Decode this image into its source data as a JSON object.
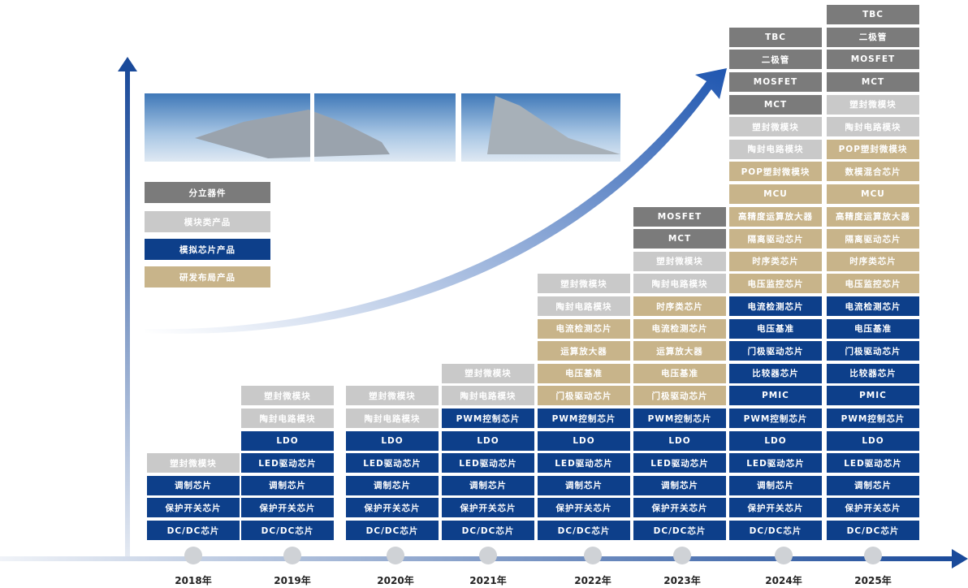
{
  "legend": [
    {
      "label": "分立器件",
      "color": "#7b7b7b"
    },
    {
      "label": "模块类产品",
      "color": "#c9c9c9"
    },
    {
      "label": "模拟芯片产品",
      "color": "#0d3f8a"
    },
    {
      "label": "研发布局产品",
      "color": "#c8b48a"
    }
  ],
  "years": [
    {
      "label": "2018年",
      "items": [
        {
          "label": "DC/DC芯片",
          "color": "#0d3f8a"
        },
        {
          "label": "保护开关芯片",
          "color": "#0d3f8a"
        },
        {
          "label": "调制芯片",
          "color": "#0d3f8a"
        },
        {
          "label": "塑封微模块",
          "color": "#c9c9c9"
        }
      ]
    },
    {
      "label": "2019年",
      "items": [
        {
          "label": "DC/DC芯片",
          "color": "#0d3f8a"
        },
        {
          "label": "保护开关芯片",
          "color": "#0d3f8a"
        },
        {
          "label": "调制芯片",
          "color": "#0d3f8a"
        },
        {
          "label": "LED驱动芯片",
          "color": "#0d3f8a"
        },
        {
          "label": "LDO",
          "color": "#0d3f8a"
        },
        {
          "label": "陶封电路模块",
          "color": "#c9c9c9"
        },
        {
          "label": "塑封微模块",
          "color": "#c9c9c9"
        }
      ]
    },
    {
      "label": "2020年",
      "items": [
        {
          "label": "DC/DC芯片",
          "color": "#0d3f8a"
        },
        {
          "label": "保护开关芯片",
          "color": "#0d3f8a"
        },
        {
          "label": "调制芯片",
          "color": "#0d3f8a"
        },
        {
          "label": "LED驱动芯片",
          "color": "#0d3f8a"
        },
        {
          "label": "LDO",
          "color": "#0d3f8a"
        },
        {
          "label": "陶封电路模块",
          "color": "#c9c9c9"
        },
        {
          "label": "塑封微模块",
          "color": "#c9c9c9"
        }
      ]
    },
    {
      "label": "2021年",
      "items": [
        {
          "label": "DC/DC芯片",
          "color": "#0d3f8a"
        },
        {
          "label": "保护开关芯片",
          "color": "#0d3f8a"
        },
        {
          "label": "调制芯片",
          "color": "#0d3f8a"
        },
        {
          "label": "LED驱动芯片",
          "color": "#0d3f8a"
        },
        {
          "label": "LDO",
          "color": "#0d3f8a"
        },
        {
          "label": "PWM控制芯片",
          "color": "#0d3f8a"
        },
        {
          "label": "陶封电路模块",
          "color": "#c9c9c9"
        },
        {
          "label": "塑封微模块",
          "color": "#c9c9c9"
        }
      ]
    },
    {
      "label": "2022年",
      "items": [
        {
          "label": "DC/DC芯片",
          "color": "#0d3f8a"
        },
        {
          "label": "保护开关芯片",
          "color": "#0d3f8a"
        },
        {
          "label": "调制芯片",
          "color": "#0d3f8a"
        },
        {
          "label": "LED驱动芯片",
          "color": "#0d3f8a"
        },
        {
          "label": "LDO",
          "color": "#0d3f8a"
        },
        {
          "label": "PWM控制芯片",
          "color": "#0d3f8a"
        },
        {
          "label": "门极驱动芯片",
          "color": "#c8b48a"
        },
        {
          "label": "电压基准",
          "color": "#c8b48a"
        },
        {
          "label": "运算放大器",
          "color": "#c8b48a"
        },
        {
          "label": "电流检测芯片",
          "color": "#c8b48a"
        },
        {
          "label": "陶封电路模块",
          "color": "#c9c9c9"
        },
        {
          "label": "塑封微模块",
          "color": "#c9c9c9"
        }
      ]
    },
    {
      "label": "2023年",
      "items": [
        {
          "label": "DC/DC芯片",
          "color": "#0d3f8a"
        },
        {
          "label": "保护开关芯片",
          "color": "#0d3f8a"
        },
        {
          "label": "调制芯片",
          "color": "#0d3f8a"
        },
        {
          "label": "LED驱动芯片",
          "color": "#0d3f8a"
        },
        {
          "label": "LDO",
          "color": "#0d3f8a"
        },
        {
          "label": "PWM控制芯片",
          "color": "#0d3f8a"
        },
        {
          "label": "门极驱动芯片",
          "color": "#c8b48a"
        },
        {
          "label": "电压基准",
          "color": "#c8b48a"
        },
        {
          "label": "运算放大器",
          "color": "#c8b48a"
        },
        {
          "label": "电流检测芯片",
          "color": "#c8b48a"
        },
        {
          "label": "时序类芯片",
          "color": "#c8b48a"
        },
        {
          "label": "陶封电路模块",
          "color": "#c9c9c9"
        },
        {
          "label": "塑封微模块",
          "color": "#c9c9c9"
        },
        {
          "label": "MCT",
          "color": "#7b7b7b"
        },
        {
          "label": "MOSFET",
          "color": "#7b7b7b"
        }
      ]
    },
    {
      "label": "2024年",
      "items": [
        {
          "label": "DC/DC芯片",
          "color": "#0d3f8a"
        },
        {
          "label": "保护开关芯片",
          "color": "#0d3f8a"
        },
        {
          "label": "调制芯片",
          "color": "#0d3f8a"
        },
        {
          "label": "LED驱动芯片",
          "color": "#0d3f8a"
        },
        {
          "label": "LDO",
          "color": "#0d3f8a"
        },
        {
          "label": "PWM控制芯片",
          "color": "#0d3f8a"
        },
        {
          "label": "PMIC",
          "color": "#0d3f8a"
        },
        {
          "label": "比较器芯片",
          "color": "#0d3f8a"
        },
        {
          "label": "门极驱动芯片",
          "color": "#0d3f8a"
        },
        {
          "label": "电压基准",
          "color": "#0d3f8a"
        },
        {
          "label": "电流检测芯片",
          "color": "#0d3f8a"
        },
        {
          "label": "电压监控芯片",
          "color": "#c8b48a"
        },
        {
          "label": "时序类芯片",
          "color": "#c8b48a"
        },
        {
          "label": "隔离驱动芯片",
          "color": "#c8b48a"
        },
        {
          "label": "高精度运算放大器",
          "color": "#c8b48a"
        },
        {
          "label": "MCU",
          "color": "#c8b48a"
        },
        {
          "label": "POP塑封微模块",
          "color": "#c8b48a"
        },
        {
          "label": "陶封电路模块",
          "color": "#c9c9c9"
        },
        {
          "label": "塑封微模块",
          "color": "#c9c9c9"
        },
        {
          "label": "MCT",
          "color": "#7b7b7b"
        },
        {
          "label": "MOSFET",
          "color": "#7b7b7b"
        },
        {
          "label": "二极管",
          "color": "#7b7b7b"
        },
        {
          "label": "TBC",
          "color": "#7b7b7b"
        }
      ]
    },
    {
      "label": "2025年",
      "items": [
        {
          "label": "DC/DC芯片",
          "color": "#0d3f8a"
        },
        {
          "label": "保护开关芯片",
          "color": "#0d3f8a"
        },
        {
          "label": "调制芯片",
          "color": "#0d3f8a"
        },
        {
          "label": "LED驱动芯片",
          "color": "#0d3f8a"
        },
        {
          "label": "LDO",
          "color": "#0d3f8a"
        },
        {
          "label": "PWM控制芯片",
          "color": "#0d3f8a"
        },
        {
          "label": "PMIC",
          "color": "#0d3f8a"
        },
        {
          "label": "比较器芯片",
          "color": "#0d3f8a"
        },
        {
          "label": "门极驱动芯片",
          "color": "#0d3f8a"
        },
        {
          "label": "电压基准",
          "color": "#0d3f8a"
        },
        {
          "label": "电流检测芯片",
          "color": "#0d3f8a"
        },
        {
          "label": "电压监控芯片",
          "color": "#c8b48a"
        },
        {
          "label": "时序类芯片",
          "color": "#c8b48a"
        },
        {
          "label": "隔离驱动芯片",
          "color": "#c8b48a"
        },
        {
          "label": "高精度运算放大器",
          "color": "#c8b48a"
        },
        {
          "label": "MCU",
          "color": "#c8b48a"
        },
        {
          "label": "数模混合芯片",
          "color": "#c8b48a"
        },
        {
          "label": "POP塑封微模块",
          "color": "#c8b48a"
        },
        {
          "label": "陶封电路模块",
          "color": "#c9c9c9"
        },
        {
          "label": "塑封微模块",
          "color": "#c9c9c9"
        },
        {
          "label": "MCT",
          "color": "#7b7b7b"
        },
        {
          "label": "MOSFET",
          "color": "#7b7b7b"
        },
        {
          "label": "二极管",
          "color": "#7b7b7b"
        },
        {
          "label": "TBC",
          "color": "#7b7b7b"
        }
      ]
    }
  ]
}
